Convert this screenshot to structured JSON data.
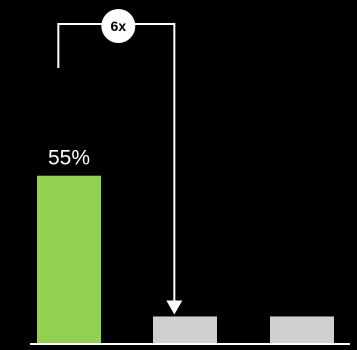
{
  "chart_data": {
    "type": "bar",
    "categories": [
      "",
      "",
      ""
    ],
    "values": [
      55,
      9,
      9
    ],
    "ylim": [
      0,
      100
    ],
    "data_labels": [
      "55%",
      "",
      ""
    ],
    "colors": [
      "#92d050",
      "#d0d0d0",
      "#d0d0d0"
    ],
    "background": "#000000",
    "axis_color": "#ffffff",
    "annotation": {
      "label": "6x",
      "from_bar": 0,
      "to_bar": 1
    },
    "grid": false,
    "legend": "none"
  }
}
